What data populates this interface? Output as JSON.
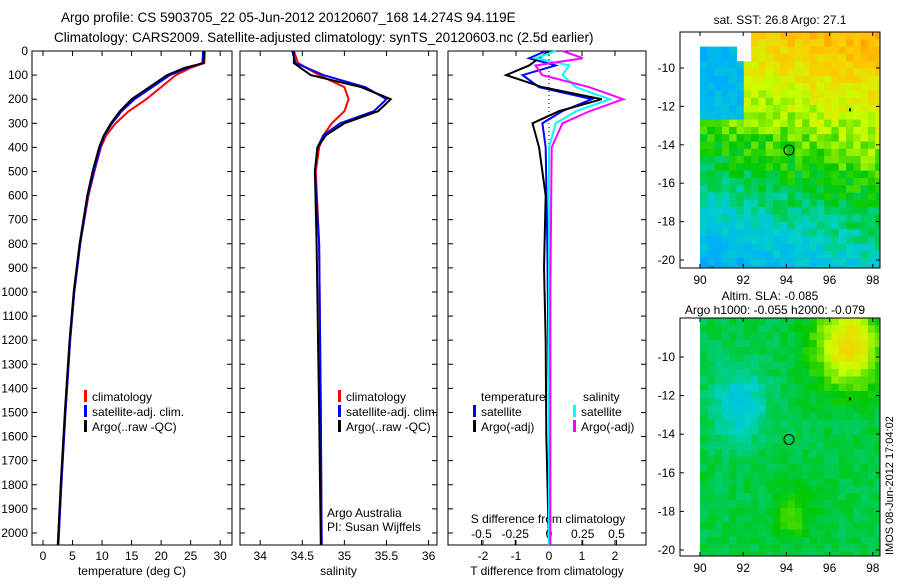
{
  "title": {
    "line1": "Argo profile: CS 5903705_22 05-Jun-2012 20120607_168 14.274S 94.119E",
    "line2": "Climatology: CARS2009. Satellite-adjusted climatology: synTS_20120603.nc (2.5d earlier)"
  },
  "chart_data": [
    {
      "type": "line",
      "id": "temperature",
      "xlabel": "temperature (deg C)",
      "ylabel": "",
      "xlim": [
        -1.86,
        32
      ],
      "ylim": [
        2050,
        0
      ],
      "xticks": [
        0,
        5,
        10,
        15,
        20,
        25,
        30
      ],
      "yticks": [
        0,
        100,
        200,
        300,
        400,
        500,
        600,
        700,
        800,
        900,
        1000,
        1100,
        1200,
        1300,
        1400,
        1500,
        1600,
        1700,
        1800,
        1900,
        2000
      ],
      "legend": {
        "placement": "lower-center",
        "entries": [
          "climatology",
          "satellite-adj. clim.",
          "Argo(..raw -QC)"
        ]
      },
      "series": [
        {
          "name": "climatology",
          "color": "#ff0000",
          "points": [
            [
              0,
              27.4
            ],
            [
              50,
              27.3
            ],
            [
              70,
              25
            ],
            [
              100,
              22.5
            ],
            [
              150,
              20
            ],
            [
              200,
              17.5
            ],
            [
              250,
              14.5
            ],
            [
              300,
              12.3
            ],
            [
              350,
              10.7
            ],
            [
              400,
              9.8
            ],
            [
              500,
              8.7
            ],
            [
              600,
              7.7
            ],
            [
              800,
              6.3
            ],
            [
              1000,
              5.3
            ],
            [
              1200,
              4.6
            ],
            [
              1500,
              3.8
            ],
            [
              1800,
              3.1
            ],
            [
              2050,
              2.6
            ]
          ]
        },
        {
          "name": "satellite-adj. clim.",
          "color": "#0000ff",
          "points": [
            [
              0,
              27.1
            ],
            [
              50,
              27.0
            ],
            [
              70,
              24.5
            ],
            [
              100,
              21.5
            ],
            [
              150,
              18.5
            ],
            [
              200,
              15.5
            ],
            [
              250,
              13.3
            ],
            [
              300,
              11.7
            ],
            [
              350,
              10.4
            ],
            [
              400,
              9.7
            ],
            [
              500,
              8.6
            ],
            [
              600,
              7.6
            ],
            [
              800,
              6.3
            ],
            [
              1000,
              5.3
            ],
            [
              1200,
              4.6
            ],
            [
              1500,
              3.8
            ],
            [
              1800,
              3.1
            ],
            [
              2050,
              2.6
            ]
          ]
        },
        {
          "name": "Argo(..raw -QC)",
          "color": "#000000",
          "points": [
            [
              0,
              27.3
            ],
            [
              50,
              27.2
            ],
            [
              70,
              24
            ],
            [
              100,
              21
            ],
            [
              150,
              18
            ],
            [
              200,
              15
            ],
            [
              250,
              13
            ],
            [
              300,
              11.5
            ],
            [
              350,
              10.3
            ],
            [
              400,
              9.5
            ],
            [
              500,
              8.4
            ],
            [
              600,
              7.5
            ],
            [
              800,
              6.2
            ],
            [
              1000,
              5.2
            ],
            [
              1200,
              4.5
            ],
            [
              1500,
              3.7
            ],
            [
              1800,
              3.0
            ],
            [
              2050,
              2.5
            ]
          ]
        }
      ]
    },
    {
      "type": "line",
      "id": "salinity",
      "xlabel": "salinity",
      "xlim": [
        33.76,
        36.1
      ],
      "ylim": [
        2050,
        0
      ],
      "xticks": [
        34,
        34.5,
        35,
        35.5,
        36
      ],
      "legend": {
        "placement": "lower-right",
        "entries": [
          "climatology",
          "satellite-adj. clim.",
          "Argo(..raw -QC)"
        ]
      },
      "annotations": [
        "Argo Australia",
        "PI: Susan Wijffels"
      ],
      "series": [
        {
          "name": "climatology",
          "color": "#ff0000",
          "points": [
            [
              0,
              34.4
            ],
            [
              50,
              34.45
            ],
            [
              100,
              34.7
            ],
            [
              150,
              35.0
            ],
            [
              200,
              35.05
            ],
            [
              250,
              35.0
            ],
            [
              300,
              34.85
            ],
            [
              350,
              34.75
            ],
            [
              400,
              34.7
            ],
            [
              500,
              34.66
            ],
            [
              800,
              34.7
            ],
            [
              1500,
              34.72
            ],
            [
              2050,
              34.73
            ]
          ]
        },
        {
          "name": "satellite-adj. clim.",
          "color": "#0000ff",
          "points": [
            [
              0,
              34.38
            ],
            [
              50,
              34.42
            ],
            [
              100,
              34.75
            ],
            [
              150,
              35.25
            ],
            [
              200,
              35.5
            ],
            [
              250,
              35.35
            ],
            [
              300,
              34.95
            ],
            [
              350,
              34.75
            ],
            [
              400,
              34.68
            ],
            [
              500,
              34.65
            ],
            [
              800,
              34.7
            ],
            [
              1500,
              34.72
            ],
            [
              2050,
              34.73
            ]
          ]
        },
        {
          "name": "Argo(..raw -QC)",
          "color": "#000000",
          "points": [
            [
              0,
              34.4
            ],
            [
              50,
              34.4
            ],
            [
              100,
              34.6
            ],
            [
              150,
              35.2
            ],
            [
              200,
              35.55
            ],
            [
              250,
              35.4
            ],
            [
              300,
              35.0
            ],
            [
              350,
              34.78
            ],
            [
              400,
              34.68
            ],
            [
              500,
              34.65
            ],
            [
              800,
              34.67
            ],
            [
              1500,
              34.7
            ],
            [
              2050,
              34.72
            ]
          ]
        }
      ]
    },
    {
      "type": "line",
      "id": "difference",
      "xlabel": "T difference from climatology",
      "xlabel2": "S difference from climatology",
      "xlim": [
        -3.06,
        2.94
      ],
      "xticks": [
        -2,
        -1,
        0,
        1,
        2
      ],
      "xlim2": [
        -0.5,
        0.5
      ],
      "xticks2": [
        "-0.5",
        "-0.25",
        "0",
        "0.25",
        "0.5"
      ],
      "ylim": [
        2050,
        0
      ],
      "legend": {
        "placement": "lower-center",
        "groups": [
          {
            "heading": "temperature",
            "entries": [
              "satellite",
              "Argo(-adj)"
            ]
          },
          {
            "heading": "salinity",
            "entries": [
              "satellite",
              "Argo(-adj)"
            ]
          }
        ]
      },
      "series": [
        {
          "name": "temperature satellite",
          "color": "#0000ff",
          "points": [
            [
              0,
              -0.1
            ],
            [
              30,
              -0.6
            ],
            [
              60,
              0.2
            ],
            [
              100,
              -0.8
            ],
            [
              150,
              -0.3
            ],
            [
              200,
              1.3
            ],
            [
              250,
              0.4
            ],
            [
              300,
              -0.2
            ],
            [
              400,
              -0.1
            ],
            [
              800,
              -0.05
            ],
            [
              1500,
              0
            ],
            [
              2050,
              0
            ]
          ]
        },
        {
          "name": "temperature Argo(-adj)",
          "color": "#000000",
          "points": [
            [
              0,
              0
            ],
            [
              30,
              -0.3
            ],
            [
              60,
              -0.6
            ],
            [
              100,
              -1.3
            ],
            [
              150,
              -0.2
            ],
            [
              200,
              1.6
            ],
            [
              250,
              0.3
            ],
            [
              300,
              -0.5
            ],
            [
              400,
              -0.3
            ],
            [
              600,
              -0.1
            ],
            [
              900,
              -0.15
            ],
            [
              1200,
              -0.1
            ],
            [
              1600,
              -0.08
            ],
            [
              2050,
              0
            ]
          ]
        },
        {
          "name": "salinity satellite",
          "color": "#00ffff",
          "points": [
            [
              0,
              0.05
            ],
            [
              30,
              -0.1
            ],
            [
              60,
              0.15
            ],
            [
              100,
              0.1
            ],
            [
              150,
              0.2
            ],
            [
              200,
              0.45
            ],
            [
              250,
              0.2
            ],
            [
              300,
              0.05
            ],
            [
              400,
              0
            ],
            [
              1000,
              0
            ],
            [
              2050,
              0
            ]
          ]
        },
        {
          "name": "salinity Argo(-adj)",
          "color": "#ff00ff",
          "points": [
            [
              0,
              0.1
            ],
            [
              30,
              0.25
            ],
            [
              60,
              -0.1
            ],
            [
              100,
              -0.05
            ],
            [
              150,
              0.3
            ],
            [
              200,
              0.55
            ],
            [
              250,
              0.3
            ],
            [
              300,
              0.1
            ],
            [
              400,
              0.02
            ],
            [
              1000,
              0.01
            ],
            [
              2050,
              0.01
            ]
          ]
        }
      ]
    },
    {
      "type": "heatmap",
      "id": "sst-map",
      "title": "sat. SST: 26.8 Argo: 27.1",
      "xticks": [
        90,
        92,
        94,
        96,
        98
      ],
      "yticks": [
        -10,
        -12,
        -14,
        -16,
        -18,
        -20
      ],
      "argo_position": [
        94.119,
        -14.274
      ]
    },
    {
      "type": "heatmap",
      "id": "sla-map",
      "title": "Altim. SLA: -0.085",
      "subtitle": "Argo h1000: -0.055 h2000: -0.079",
      "xticks": [
        90,
        92,
        94,
        96,
        98
      ],
      "yticks": [
        -10,
        -12,
        -14,
        -16,
        -18,
        -20
      ],
      "argo_position": [
        94.119,
        -14.274
      ]
    }
  ],
  "footer": {
    "stamp": "IMOS 08-Jun-2012 17:04:02"
  }
}
